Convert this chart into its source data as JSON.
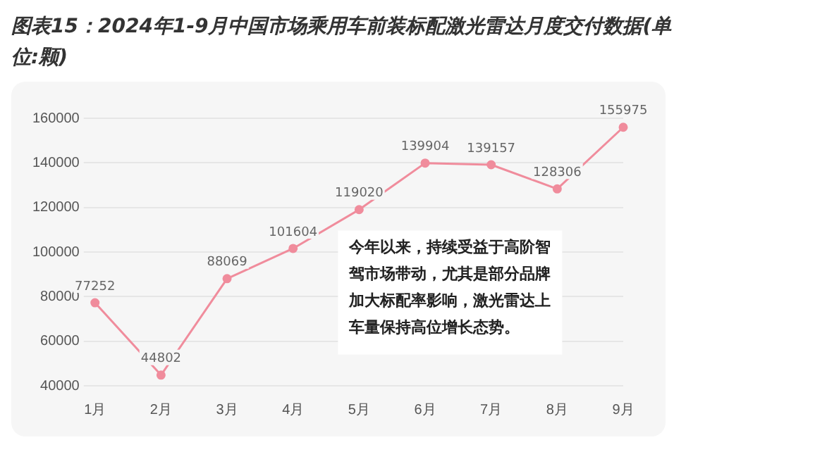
{
  "chart_data": {
    "type": "line",
    "title": "图表15：2024年1-9月中国市场乘用车前装标配激光雷达月度交付数据(单位:颗)",
    "categories": [
      "1月",
      "2月",
      "3月",
      "4月",
      "5月",
      "6月",
      "7月",
      "8月",
      "9月"
    ],
    "series": [
      {
        "color": "#f08c9c",
        "values": [
          77252,
          44802,
          88069,
          101604,
          119020,
          139904,
          139157,
          128306,
          155975
        ]
      }
    ],
    "ylim": [
      40000,
      160000
    ],
    "yticks": [
      40000,
      60000,
      80000,
      100000,
      120000,
      140000,
      160000
    ],
    "grid": "y",
    "marker": "circle",
    "line_style": "solid",
    "data_labels": true,
    "legend": false,
    "annotations": [
      "今年以来，持续受益于高阶智驾市场带动，尤其是部分品牌加大标配率影响，激光雷达上车量保持高位增长态势。"
    ]
  }
}
